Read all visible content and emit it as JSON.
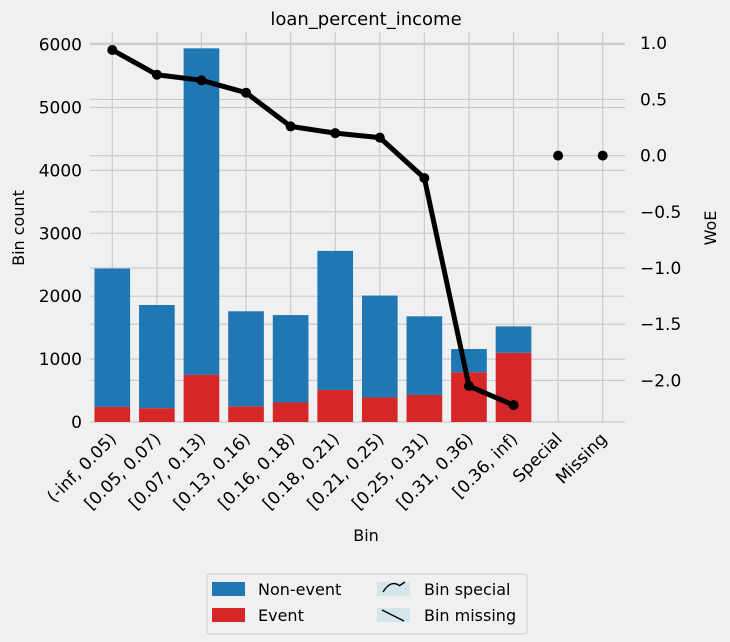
{
  "chart_data": {
    "type": "bar",
    "title": "loan_percent_income",
    "xlabel": "Bin",
    "ylabel": "Bin count",
    "y2label": "WoE",
    "categories": [
      "(-inf, 0.05)",
      "[0.05, 0.07)",
      "[0.07, 0.13)",
      "[0.13, 0.16)",
      "[0.16, 0.18)",
      "[0.18, 0.21)",
      "[0.21, 0.25)",
      "[0.25, 0.31)",
      "[0.31, 0.36)",
      "[0.36, inf)",
      "Special",
      "Missing"
    ],
    "series": [
      {
        "name": "Non-event",
        "color": "#1f77b4",
        "values": [
          2200,
          1640,
          5190,
          1510,
          1390,
          2210,
          1620,
          1250,
          370,
          420,
          0,
          0
        ]
      },
      {
        "name": "Event",
        "color": "#d62728",
        "values": [
          240,
          220,
          750,
          250,
          310,
          510,
          390,
          430,
          790,
          1100,
          0,
          0
        ]
      }
    ],
    "woe": [
      0.94,
      0.72,
      0.67,
      0.56,
      0.26,
      0.2,
      0.16,
      -0.2,
      -2.05,
      -2.22,
      0,
      0
    ],
    "ylim": [
      0,
      6200
    ],
    "y2lim": [
      -2.37,
      1.1
    ],
    "yticks": [
      0,
      1000,
      2000,
      3000,
      4000,
      5000,
      6000
    ],
    "y2ticks": [
      1.0,
      0.5,
      0.0,
      -0.5,
      -1.0,
      -1.5,
      -2.0
    ],
    "y2ticklabels": [
      "1.0",
      "0.5",
      "0.0",
      "−0.5",
      "−1.0",
      "−1.5",
      "−2.0"
    ],
    "legend": {
      "position": "bottom",
      "entries": [
        "Non-event",
        "Event",
        "Bin special",
        "Bin missing"
      ]
    },
    "grid": true
  }
}
